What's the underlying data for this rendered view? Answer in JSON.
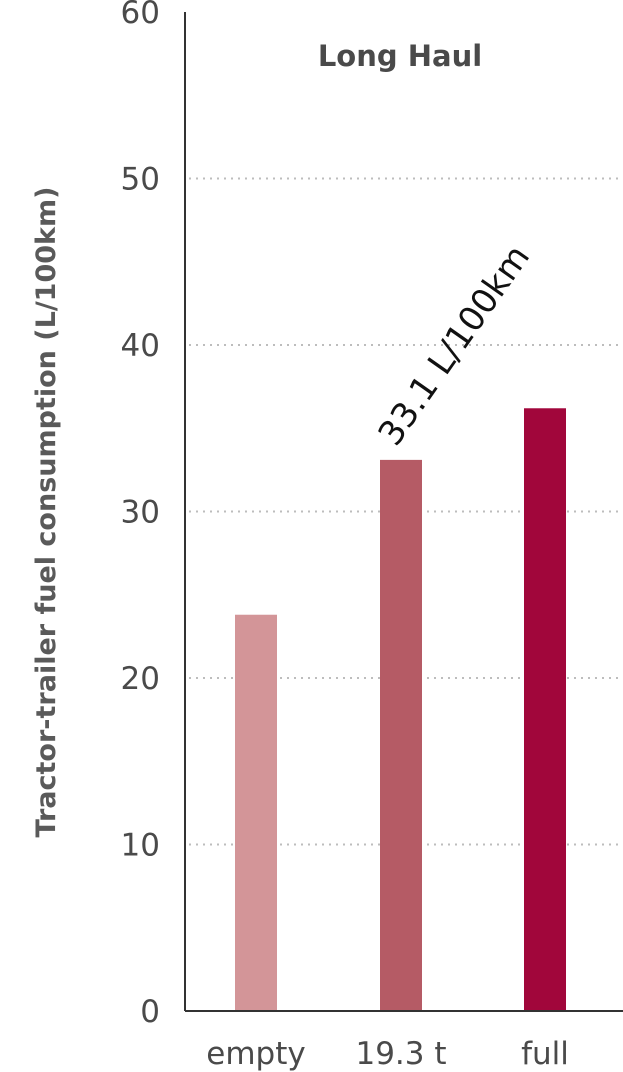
{
  "chart_data": {
    "type": "bar",
    "title": "Long Haul",
    "ylabel": "Tractor-trailer fuel consumption (L/100km)",
    "xlabel": "",
    "ylim": [
      0,
      60
    ],
    "yticks": [
      0,
      10,
      20,
      30,
      40,
      50,
      60
    ],
    "ytick_labels": [
      "0",
      "10",
      "20",
      "30",
      "40",
      "50",
      "60"
    ],
    "grid": true,
    "categories": [
      "empty",
      "19.3 t",
      "full"
    ],
    "values": [
      23.8,
      33.1,
      36.2
    ],
    "colors": [
      "#d39598",
      "#b55b65",
      "#a1063b"
    ],
    "annotations": [
      {
        "category_index": 1,
        "text": "33.1 L/100km"
      }
    ]
  }
}
